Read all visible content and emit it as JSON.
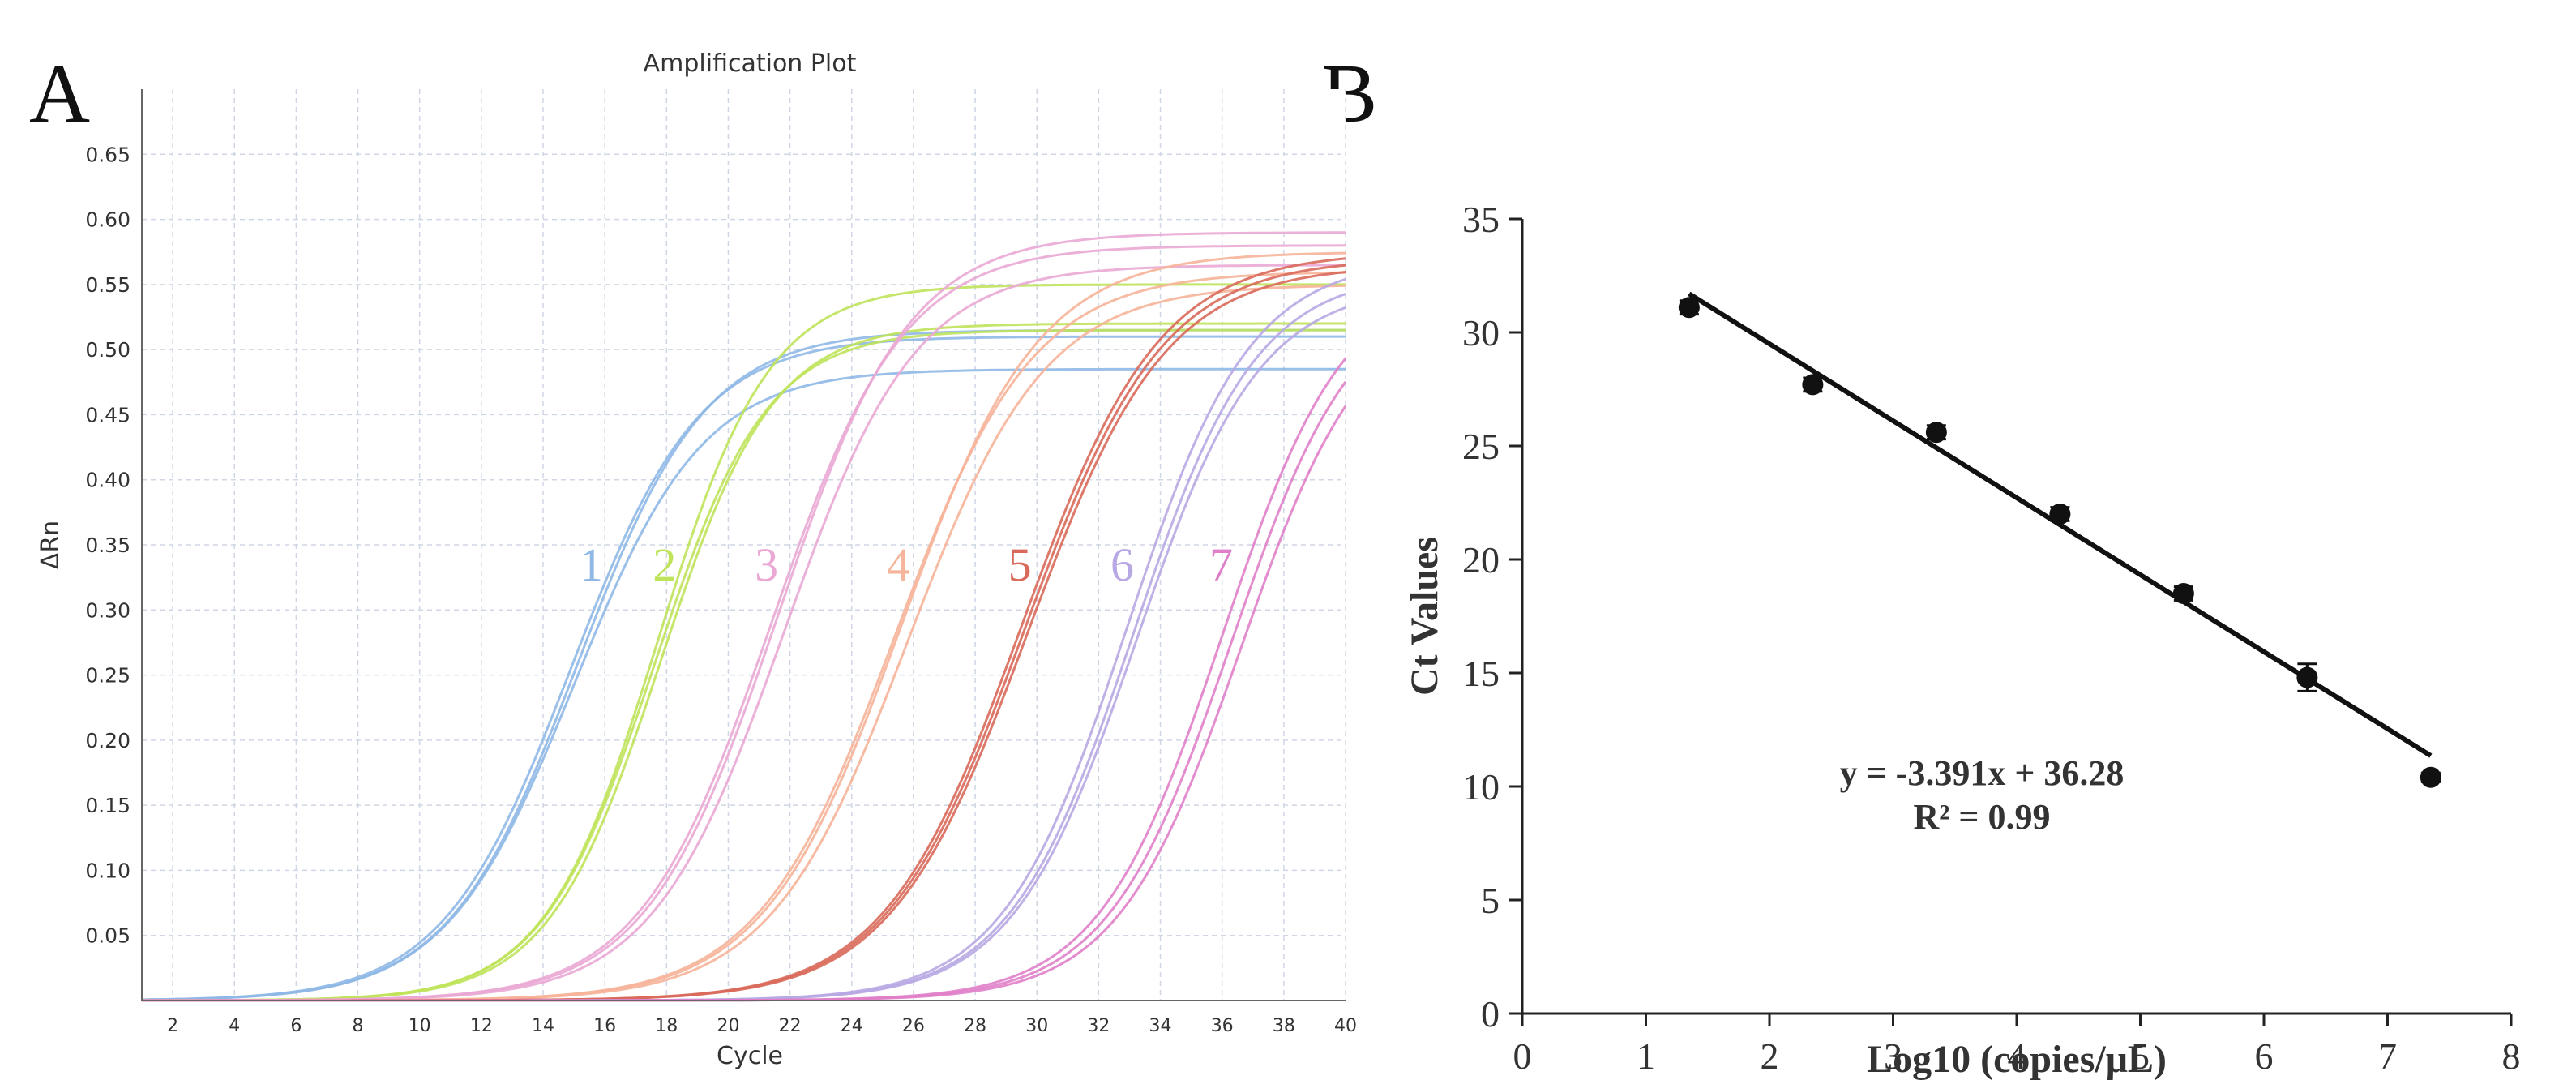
{
  "panel_labels": {
    "a": "A",
    "b": "B"
  },
  "colors": {
    "grid": "#cfd6e4",
    "axis": "#444444",
    "text": "#333333",
    "series": [
      "#8fb8e6",
      "#bfe35a",
      "#eaa9d4",
      "#f6b49a",
      "#d96a5b",
      "#b8a8e3",
      "#e07fc9"
    ],
    "scatter": "#111111",
    "fit_line": "#111111"
  },
  "chart_data": [
    {
      "type": "line",
      "title": "Amplification Plot",
      "xlabel": "Cycle",
      "ylabel": "ΔRn",
      "xlim": [
        1,
        40
      ],
      "ylim": [
        0,
        0.7
      ],
      "x_ticks": [
        2,
        4,
        6,
        8,
        10,
        12,
        14,
        16,
        18,
        20,
        22,
        24,
        26,
        28,
        30,
        32,
        34,
        36,
        38,
        40
      ],
      "y_ticks": [
        0.05,
        0.1,
        0.15,
        0.2,
        0.25,
        0.3,
        0.35,
        0.4,
        0.45,
        0.5,
        0.55,
        0.6,
        0.65
      ],
      "y_tick_labels": [
        "0.05",
        "0.10",
        "0.15",
        "0.20",
        "0.25",
        "0.30",
        "0.35",
        "0.40",
        "0.45",
        "0.50",
        "0.55",
        "0.60",
        "0.65"
      ],
      "grid": true,
      "series": [
        {
          "name": "1",
          "midpoints": [
            14.9,
            15.1,
            15.0
          ],
          "plateaus": [
            0.51,
            0.515,
            0.485
          ],
          "steepness": 0.48
        },
        {
          "name": "2",
          "midpoints": [
            17.6,
            17.8,
            17.7
          ],
          "plateaus": [
            0.515,
            0.52,
            0.55
          ],
          "steepness": 0.55
        },
        {
          "name": "3",
          "midpoints": [
            21.4,
            21.6,
            21.8
          ],
          "plateaus": [
            0.58,
            0.59,
            0.565
          ],
          "steepness": 0.47
        },
        {
          "name": "4",
          "midpoints": [
            25.4,
            25.6,
            25.8
          ],
          "plateaus": [
            0.56,
            0.575,
            0.55
          ],
          "steepness": 0.45
        },
        {
          "name": "5",
          "midpoints": [
            29.5,
            29.6,
            29.7
          ],
          "plateaus": [
            0.575,
            0.57,
            0.565
          ],
          "steepness": 0.45
        },
        {
          "name": "6",
          "midpoints": [
            32.9,
            33.1,
            33.2
          ],
          "plateaus": [
            0.57,
            0.56,
            0.55
          ],
          "steepness": 0.5
        },
        {
          "name": "7",
          "midpoints": [
            36.0,
            36.3,
            36.6
          ],
          "plateaus": [
            0.56,
            0.55,
            0.54
          ],
          "steepness": 0.5
        }
      ]
    },
    {
      "type": "scatter",
      "xlabel": "Log10 (copies/μL)",
      "ylabel": "Ct Values",
      "xlim": [
        0,
        8
      ],
      "ylim": [
        0,
        35
      ],
      "x_ticks": [
        0,
        1,
        2,
        3,
        4,
        5,
        6,
        7,
        8
      ],
      "y_ticks": [
        0,
        5,
        10,
        15,
        20,
        25,
        30,
        35
      ],
      "x": [
        1.35,
        2.35,
        3.35,
        4.35,
        5.35,
        6.35,
        7.35
      ],
      "y": [
        31.1,
        27.7,
        25.6,
        22.0,
        18.5,
        14.8,
        10.4
      ],
      "error": [
        0.3,
        0.3,
        0.3,
        0.3,
        0.3,
        0.6,
        0.2
      ],
      "fit": {
        "slope": -3.391,
        "intercept": 36.28,
        "x_range": [
          1.35,
          7.35
        ]
      },
      "equation": "y = -3.391x + 36.28",
      "r_squared": "R² = 0.99"
    }
  ]
}
